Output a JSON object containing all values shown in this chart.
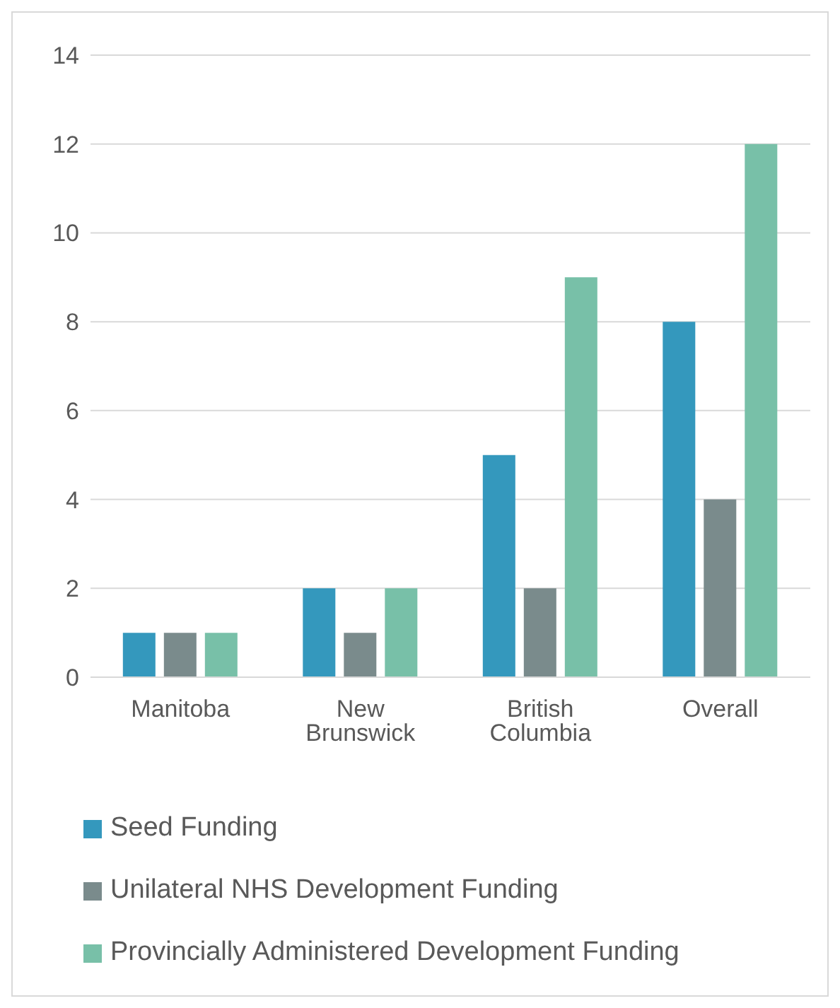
{
  "chart_data": {
    "type": "bar",
    "categories": [
      "Manitoba",
      "New Brunswick",
      "British Columbia",
      "Overall"
    ],
    "series": [
      {
        "name": "Seed Funding",
        "color": "#3498bd",
        "values": [
          1,
          2,
          5,
          8
        ]
      },
      {
        "name": "Unilateral NHS Development Funding",
        "color": "#7a8b8c",
        "values": [
          1,
          1,
          2,
          4
        ]
      },
      {
        "name": "Provincially Administered Development Funding",
        "color": "#78c0a8",
        "values": [
          1,
          2,
          9,
          12
        ]
      }
    ],
    "ylim": [
      0,
      14
    ],
    "yticks": [
      0,
      2,
      4,
      6,
      8,
      10,
      12,
      14
    ],
    "grid": "y",
    "legend": "bottom"
  }
}
